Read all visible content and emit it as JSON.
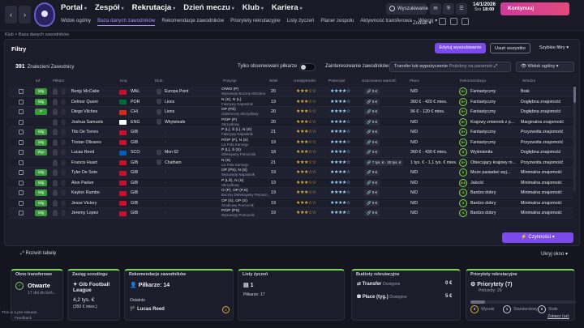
{
  "topbar": {
    "back": "‹",
    "forward": "›",
    "nav": [
      {
        "label": "Portal"
      },
      {
        "label": "Zespół"
      },
      {
        "label": "Rekrutacja"
      },
      {
        "label": "Dzień meczu"
      },
      {
        "label": "Klub"
      },
      {
        "label": "Kariera"
      }
    ],
    "subnav": [
      {
        "label": "Widok ogólny"
      },
      {
        "label": "Baza danych zawodników"
      },
      {
        "label": "Rekomendacje zawodników"
      },
      {
        "label": "Priorytety rekrutacyjne"
      },
      {
        "label": "Listy życzeń"
      },
      {
        "label": "Planer zespołu"
      },
      {
        "label": "Aktywność transferowa"
      },
      {
        "label": "Więcej"
      }
    ],
    "search_label": "Wyszukiwanie",
    "date": "14/1/2026",
    "day": "Śro",
    "time": "18:00",
    "continue_label": "Kontynuuj",
    "zodiac": "Zodiak"
  },
  "breadcrumb": "Klub > Baza danych zawodników",
  "panel": {
    "title": "Filtry",
    "edit_search": "Edytuj wyszukiwanie",
    "clear_all": "Usuń wszystko",
    "quick_filters": "Szybkie filtry",
    "found_count": "391",
    "found_label": "Znalezieni Zawodnicy",
    "only_observed": "Tylko obserwowani piłkarze",
    "interest_label": "Zainteresowanie zawodników",
    "interest_value": "Transfer lub wypożyczenie",
    "interest_sub": "Podobny na parametr",
    "view_label": "Widok ogólny",
    "actions_label": "Czynności"
  },
  "columns": [
    "Inf",
    "Piłkarz",
    "Kraj",
    "Klub",
    "Pozycje",
    "Wiek",
    "Umiejętności",
    "Potencjał",
    "Szacowana wartość",
    "Płace",
    "Rekomendacja",
    "Wiedza"
  ],
  "players": [
    {
      "inf": "Wlg",
      "name": "Benjy McCabe",
      "flag": "#c8102e",
      "country": "WAL",
      "club": "Europa Point",
      "pos": "O/WO (P)",
      "pos2": "Wysunięty Boczny Obrońca",
      "age": "20",
      "skill": "★★★☆☆",
      "pot": "★★★★☆",
      "value": "0 €",
      "wage": "N/D",
      "rec": "5+",
      "recn": "Fantastyczny",
      "know": "Brak"
    },
    {
      "inf": "Wlg",
      "name": "Delmor Queni",
      "flag": "#046a38",
      "country": "POR",
      "club": "Lions",
      "pos": "N (S), N (L)",
      "pos2": "Fałszywy Napastnik",
      "age": "19",
      "skill": "★★★☆☆",
      "pot": "★★★★☆",
      "value": "0 €",
      "wage": "360 € - 420 € mies.",
      "rec": "5+",
      "recn": "Fantastyczny",
      "know": "Dogłębna znajomość"
    },
    {
      "inf": "P",
      "name": "Diego Vilches",
      "flag": "#d52b1e",
      "country": "CHI",
      "club": "Lions",
      "pos": "OP (PŚ)",
      "pos2": "Odwrócony Skrzydłowy",
      "age": "20",
      "skill": "★★★☆☆",
      "pot": "★★★★☆",
      "value": "0 €",
      "wage": "96 € - 120 € mies.",
      "rec": "5+",
      "recn": "Fantastyczny",
      "know": "Dogłębna znajomość"
    },
    {
      "inf": "",
      "name": "Joshua Samuels",
      "flag": "#ffffff",
      "country": "ENG",
      "club": "Whyteleafe",
      "pos": "P/OP (P)",
      "pos2": "Skrzydłowy",
      "age": "20",
      "skill": "★★★☆☆",
      "pot": "★★★★☆",
      "value": "0 €",
      "wage": "N/D",
      "rec": "5+",
      "recn": "Krajowy zmiennik z p...",
      "know": "Marginalna znajomość"
    },
    {
      "inf": "Wlg",
      "name": "Tito De Torres",
      "flag": "#c8102e",
      "country": "GIB",
      "club": "",
      "pos": "P (L), Ś (L), N (S)",
      "pos2": "Fałszywy Napastnik",
      "age": "21",
      "skill": "★★★☆☆",
      "pot": "★★★★☆",
      "value": "0 €",
      "wage": "N/D",
      "rec": "5+",
      "recn": "Fantastyczny",
      "know": "Przyzwoita znajomość"
    },
    {
      "inf": "Wlg",
      "name": "Tristan Olivares",
      "flag": "#c8102e",
      "country": "GIB",
      "club": "",
      "pos": "P/OP (P), N (S)",
      "pos2": "Lis Pola Karnego",
      "age": "19",
      "skill": "★★★☆☆",
      "pot": "★★★★☆",
      "value": "0 €",
      "wage": "N/D",
      "rec": "5+",
      "recn": "Fantastyczny",
      "know": "Przyzwoita znajomość"
    },
    {
      "inf": "Wyp",
      "name": "Lucas Reed",
      "flag": "#005eb8",
      "country": "SCO",
      "club": "Mon 62",
      "pos": "P (L), Ś (S)",
      "pos2": "Ofensywny Pomocnik",
      "age": "18",
      "skill": "★★★☆☆",
      "pot": "★★★★☆",
      "value": "0 €",
      "wage": "360 € - 430 € mies.",
      "rec": "5",
      "recn": "Wyśmienita",
      "know": "Dogłębna znajomość"
    },
    {
      "inf": "",
      "name": "Francis Huart",
      "flag": "#c8102e",
      "country": "GIB",
      "club": "Chatham",
      "pos": "N (S)",
      "pos2": "Lis Pola Karnego",
      "age": "21",
      "skill": "★★★☆☆",
      "pot": "★★★★☆",
      "value": "7 tys. € - 20 tys. €",
      "wage": "1 tys. € - 1,1 tys. € mies.",
      "rec": "5+",
      "recn": "Obiecujący krajowy m...",
      "know": "Przyzwoita znajomość"
    },
    {
      "inf": "Wlg",
      "name": "Tyler De Soto",
      "flag": "#c8102e",
      "country": "GIB",
      "club": "",
      "pos": "OP (PS), N (S)",
      "pos2": "Wysunięty Napastnik",
      "age": "19",
      "skill": "★★★☆☆",
      "pot": "★★★★☆",
      "value": "0 €",
      "wage": "N/D",
      "rec": "5",
      "recn": "Może pasiadać wyj...",
      "know": "Minimalna znajomość"
    },
    {
      "inf": "Wlg",
      "name": "Alon Parker",
      "flag": "#c8102e",
      "country": "GIB",
      "club": "",
      "pos": "P (LŚ), N (S)",
      "pos2": "Skrzydłowy",
      "age": "19",
      "skill": "★★★☆☆",
      "pot": "★★★★☆",
      "value": "0 €",
      "wage": "N/D",
      "rec": "4.5",
      "recn": "Jakość",
      "know": "Minimalna znajomość"
    },
    {
      "inf": "Wlg",
      "name": "Kaylon Rumbo",
      "flag": "#c8102e",
      "country": "GIB",
      "club": "",
      "pos": "O (P), OP (P,S)",
      "pos2": "Boczny Defensywny Pomocn...",
      "age": "19",
      "skill": "★★★☆☆",
      "pot": "★★★★☆",
      "value": "0 €",
      "wage": "N/D",
      "rec": "4",
      "recn": "Bardzo dobry",
      "know": "Minimalna znajomość"
    },
    {
      "inf": "Wlg",
      "name": "Jesse Victory",
      "flag": "#c8102e",
      "country": "GIB",
      "club": "",
      "pos": "OP (S), OP (S)",
      "pos2": "Środkowy Pomocnik",
      "age": "19",
      "skill": "★★★☆☆",
      "pot": "★★★★☆",
      "value": "0 €",
      "wage": "N/D",
      "rec": "4",
      "recn": "Bardzo dobry",
      "know": "Minimalna znajomość"
    },
    {
      "inf": "Wlg",
      "name": "Jeremy Lopez",
      "flag": "#c8102e",
      "country": "GIB",
      "club": "",
      "pos": "P/OP (PS)",
      "pos2": "Wysunięty Pomocnik",
      "age": "19",
      "skill": "★★★☆☆",
      "pot": "★★★★☆",
      "value": "0 €",
      "wage": "N/D",
      "rec": "4",
      "recn": "Bardzo dobry",
      "know": "Minimalna znajomość"
    }
  ],
  "expand_bar": "Rozwiń tabelę",
  "hide_window": "Ukryj okno",
  "cards": {
    "transfer_window": {
      "title": "Okno transferowe",
      "status": "Otwarte",
      "days": "17 dni do koń..."
    },
    "scouting": {
      "title": "Zasięg scoutingu",
      "name": "Gib Football League",
      "amount": "4,2 tys. €",
      "sub": "(350 € mies.)"
    },
    "recommend": {
      "title": "Rekomendacje zawodników",
      "players": "Piłkarze: 14",
      "last": "Ostatnio",
      "last_name": "Lucas Reed",
      "badge": "5"
    },
    "wishlist": {
      "title": "Listy życzeń",
      "count": "1",
      "players": "Piłkarze: 17"
    },
    "budget": {
      "title": "Budżety rekrutacyjne",
      "transfer": "Transfer",
      "transfer_sub": "Dostępne",
      "transfer_val": "0 €",
      "wage": "Płace (tyg.)",
      "wage_sub": "Dostępne",
      "wage_val": "5 €"
    },
    "priorities": {
      "title": "Priorytety rekrutacyjne",
      "name": "Priorytety (7)",
      "sub": "Potrzeby: 29",
      "c1": "0",
      "c1l": "Wysoki",
      "c2": "1",
      "c2l": "Standardowy",
      "c3": "6",
      "c3l": "Stałe",
      "link": "Zobacz (sz)",
      "progress": 0.14
    }
  },
  "footer": {
    "version": "This is a pre-release.",
    "feedback": "Feedback"
  }
}
